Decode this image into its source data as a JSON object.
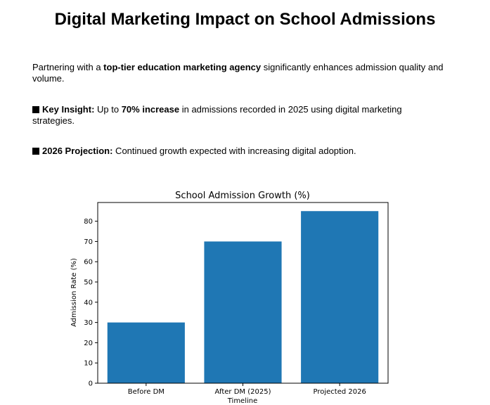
{
  "document": {
    "title": "Digital Marketing Impact on School Admissions",
    "intro": {
      "pre": "Partnering with a ",
      "bold": "top-tier education marketing agency",
      "post": " significantly enhances admission quality and volume."
    },
    "insight": {
      "label": "Key Insight:",
      "pre": " Up to ",
      "bold": "70% increase",
      "post": " in admissions recorded in 2025 using digital marketing strategies."
    },
    "projection": {
      "label": "2026 Projection:",
      "text": " Continued growth expected with increasing digital adoption."
    }
  },
  "chart_data": {
    "type": "bar",
    "title": "School Admission Growth (%)",
    "xlabel": "Timeline",
    "ylabel": "Admission Rate (%)",
    "categories": [
      "Before DM",
      "After DM (2025)",
      "Projected 2026"
    ],
    "values": [
      30,
      70,
      85
    ],
    "ylim": [
      0,
      89.25
    ],
    "yticks": [
      0,
      10,
      20,
      30,
      40,
      50,
      60,
      70,
      80
    ],
    "bar_color": "#1f77b4",
    "grid": false
  }
}
